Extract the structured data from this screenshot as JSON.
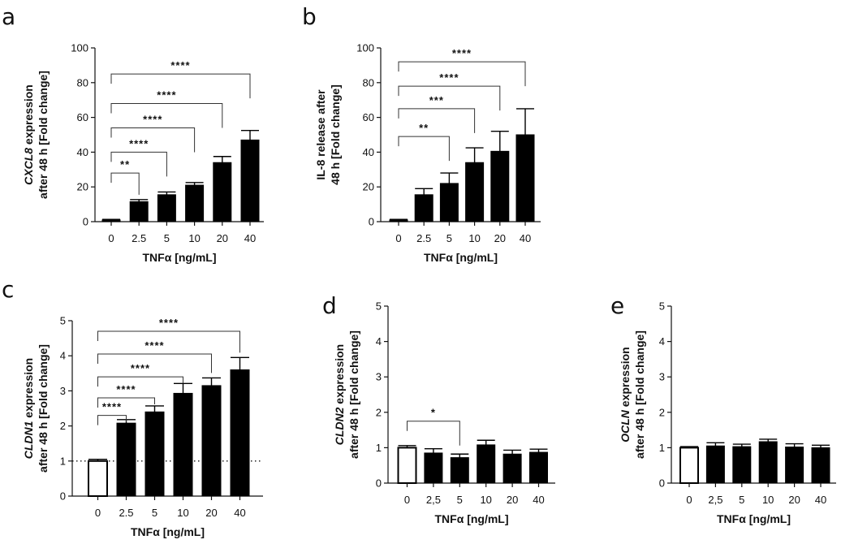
{
  "chart_data": [
    {
      "type": "bar",
      "panel": "a",
      "categories": [
        "0",
        "2.5",
        "5",
        "10",
        "20",
        "40"
      ],
      "values": [
        1,
        11.5,
        15.5,
        21,
        34,
        47
      ],
      "errors": [
        0.3,
        1.2,
        1.6,
        1.5,
        3.5,
        5.5
      ],
      "ylim": [
        0,
        100
      ],
      "yticks": [
        "0",
        "20",
        "40",
        "60",
        "80",
        "100"
      ],
      "yticks_values": [
        0,
        20,
        40,
        60,
        80,
        100
      ],
      "ylabel_italic": "CXCL8",
      "ylabel_rest": " expression",
      "ylabel_line2": "after 48 h [Fold change]",
      "xlabel": "TNFα [ng/mL]",
      "open_first": false,
      "dotted_ref": null,
      "comparisons": [
        {
          "to": 1,
          "stars": "**",
          "y": 28
        },
        {
          "to": 2,
          "stars": "****",
          "y": 40
        },
        {
          "to": 3,
          "stars": "****",
          "y": 54
        },
        {
          "to": 4,
          "stars": "****",
          "y": 68
        },
        {
          "to": 5,
          "stars": "****",
          "y": 85
        }
      ]
    },
    {
      "type": "bar",
      "panel": "b",
      "categories": [
        "0",
        "2.5",
        "5",
        "10",
        "20",
        "40"
      ],
      "values": [
        1,
        15.5,
        22,
        34,
        40.5,
        50
      ],
      "errors": [
        0.3,
        3.5,
        6,
        8.5,
        11.5,
        15
      ],
      "ylim": [
        0,
        100
      ],
      "yticks": [
        "0",
        "20",
        "40",
        "60",
        "80",
        "100"
      ],
      "yticks_values": [
        0,
        20,
        40,
        60,
        80,
        100
      ],
      "ylabel_italic": "",
      "ylabel_rest": "IL-8 release after",
      "ylabel_line2": "48 h [Fold change]",
      "xlabel": "TNFα [ng/mL]",
      "open_first": false,
      "dotted_ref": null,
      "comparisons": [
        {
          "to": 2,
          "stars": "**",
          "y": 49
        },
        {
          "to": 3,
          "stars": "***",
          "y": 65
        },
        {
          "to": 4,
          "stars": "****",
          "y": 78
        },
        {
          "to": 5,
          "stars": "****",
          "y": 92
        }
      ]
    },
    {
      "type": "bar",
      "panel": "c",
      "categories": [
        "0",
        "2.5",
        "5",
        "10",
        "20",
        "40"
      ],
      "values": [
        1,
        2.08,
        2.4,
        2.93,
        3.15,
        3.6
      ],
      "errors": [
        0.05,
        0.1,
        0.17,
        0.28,
        0.22,
        0.35
      ],
      "ylim": [
        0,
        5
      ],
      "yticks": [
        "0",
        "1",
        "2",
        "3",
        "4",
        "5"
      ],
      "yticks_values": [
        0,
        1,
        2,
        3,
        4,
        5
      ],
      "ylabel_italic": "CLDN1",
      "ylabel_rest": " expression",
      "ylabel_line2": "after 48 h [Fold change]",
      "xlabel": "TNFα [ng/mL]",
      "open_first": true,
      "dotted_ref": 1,
      "comparisons": [
        {
          "to": 1,
          "stars": "****",
          "y": 2.3
        },
        {
          "to": 2,
          "stars": "****",
          "y": 2.8
        },
        {
          "to": 3,
          "stars": "****",
          "y": 3.4
        },
        {
          "to": 4,
          "stars": "****",
          "y": 4.05
        },
        {
          "to": 5,
          "stars": "****",
          "y": 4.7
        }
      ]
    },
    {
      "type": "bar",
      "panel": "d",
      "categories": [
        "0",
        "2,5",
        "5",
        "10",
        "20",
        "40"
      ],
      "values": [
        1,
        0.85,
        0.72,
        1.08,
        0.82,
        0.87
      ],
      "errors": [
        0.06,
        0.12,
        0.1,
        0.13,
        0.11,
        0.09
      ],
      "ylim": [
        0,
        5
      ],
      "yticks": [
        "0",
        "1",
        "2",
        "3",
        "4",
        "5"
      ],
      "yticks_values": [
        0,
        1,
        2,
        3,
        4,
        5
      ],
      "ylabel_italic": "CLDN2",
      "ylabel_rest": " expression",
      "ylabel_line2": "after 48 h [Fold change]",
      "xlabel": "TNFα [ng/mL]",
      "open_first": true,
      "dotted_ref": null,
      "comparisons": [
        {
          "to": 2,
          "stars": "*",
          "y": 1.75
        }
      ]
    },
    {
      "type": "bar",
      "panel": "e",
      "categories": [
        "0",
        "2,5",
        "5",
        "10",
        "20",
        "40"
      ],
      "values": [
        1,
        1.05,
        1.03,
        1.17,
        1.02,
        1.0
      ],
      "errors": [
        0.03,
        0.09,
        0.07,
        0.07,
        0.09,
        0.07
      ],
      "ylim": [
        0,
        5
      ],
      "yticks": [
        "0",
        "1",
        "2",
        "3",
        "4",
        "5"
      ],
      "yticks_values": [
        0,
        1,
        2,
        3,
        4,
        5
      ],
      "ylabel_italic": "OCLN",
      "ylabel_rest": " expression",
      "ylabel_line2": "after 48 h [Fold change]",
      "xlabel": "TNFα [ng/mL]",
      "open_first": true,
      "dotted_ref": null,
      "comparisons": []
    }
  ]
}
